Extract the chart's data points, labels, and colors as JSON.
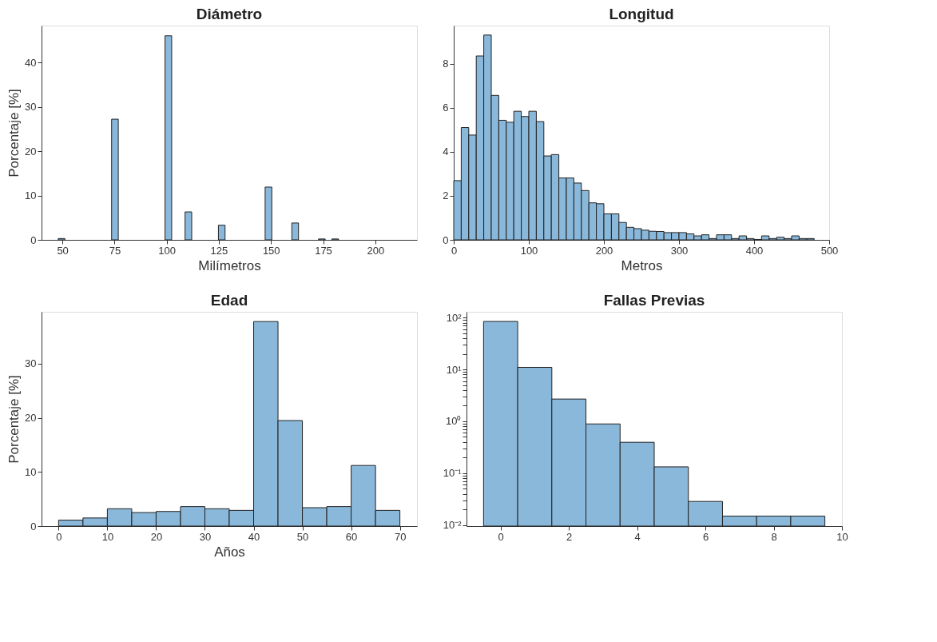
{
  "chart_data": [
    {
      "type": "histogram",
      "title": "Diámetro",
      "xlabel": "Milímetros",
      "ylabel": "Porcentaje [%]",
      "color": "#8ab8da",
      "bins": [
        48,
        51.2,
        54.4,
        57.6,
        60.8,
        64,
        67.2,
        70.4,
        73.6,
        76.8,
        80,
        83.2,
        86.4,
        89.6,
        92.8,
        96,
        99.2,
        102.4,
        105.6,
        108.8,
        112,
        115.2,
        118.4,
        121.6,
        124.8,
        128,
        131.2,
        134.4,
        137.6,
        140.8,
        144,
        147.2,
        150.4,
        153.6,
        156.8,
        160,
        163.2,
        166.4,
        169.6,
        172.8,
        176,
        179.2,
        182.4,
        185.6,
        188.8,
        192,
        195.2,
        198.4,
        201.6,
        204.8,
        208,
        211.2
      ],
      "values": [
        0.3,
        0,
        0,
        0,
        0,
        0,
        0,
        0,
        27.2,
        0,
        0,
        0,
        0,
        0,
        0,
        0,
        46.0,
        0,
        0,
        6.3,
        0,
        0,
        0,
        0,
        3.3,
        0,
        0,
        0,
        0,
        0,
        0,
        11.9,
        0,
        0,
        0,
        3.8,
        0,
        0,
        0,
        0.2,
        0,
        0.2,
        0,
        0,
        0,
        0,
        0,
        0,
        0,
        0,
        0
      ],
      "xlim": [
        40,
        220
      ],
      "xticks": [
        50,
        75,
        100,
        125,
        150,
        175,
        200
      ],
      "ylim": [
        0,
        48.3
      ],
      "yticks": [
        0,
        10,
        20,
        30,
        40
      ],
      "grid": false
    },
    {
      "type": "histogram",
      "title": "Longitud",
      "xlabel": "Metros",
      "color": "#8ab8da",
      "bins": [
        0,
        10,
        20,
        30,
        40,
        50,
        60,
        70,
        80,
        90,
        100,
        110,
        120,
        130,
        140,
        150,
        160,
        170,
        180,
        190,
        200,
        210,
        220,
        230,
        240,
        250,
        260,
        270,
        280,
        290,
        300,
        310,
        320,
        330,
        340,
        350,
        360,
        370,
        380,
        390,
        400,
        410,
        420,
        430,
        440,
        450,
        460,
        470,
        480
      ],
      "values": [
        2.69,
        5.1,
        4.76,
        8.35,
        9.3,
        6.56,
        5.43,
        5.34,
        5.84,
        5.6,
        5.84,
        5.37,
        3.81,
        3.87,
        2.81,
        2.81,
        2.58,
        2.24,
        1.68,
        1.64,
        1.18,
        1.18,
        0.79,
        0.57,
        0.51,
        0.44,
        0.39,
        0.38,
        0.33,
        0.33,
        0.33,
        0.27,
        0.18,
        0.23,
        0.06,
        0.23,
        0.23,
        0.06,
        0.18,
        0.06,
        0.02,
        0.18,
        0.06,
        0.12,
        0.06,
        0.18,
        0.06,
        0.06
      ],
      "xlim": [
        0,
        500
      ],
      "xticks": [
        0,
        100,
        200,
        300,
        400,
        500
      ],
      "ylim": [
        0,
        9.73
      ],
      "yticks": [
        0,
        2,
        4,
        6,
        8
      ],
      "grid": false
    },
    {
      "type": "histogram",
      "title": "Edad",
      "xlabel": "Años",
      "ylabel": "Porcentaje [%]",
      "color": "#8ab8da",
      "bins": [
        0,
        5,
        10,
        15,
        20,
        25,
        30,
        35,
        40,
        45,
        50,
        55,
        60,
        65,
        70
      ],
      "values": [
        1.1,
        1.5,
        3.2,
        2.5,
        2.7,
        3.6,
        3.2,
        2.9,
        37.8,
        19.5,
        3.4,
        3.6,
        11.2,
        2.9
      ],
      "xlim": [
        -3.5,
        73.5
      ],
      "xticks": [
        0,
        10,
        20,
        30,
        40,
        50,
        60,
        70
      ],
      "ylim": [
        0,
        39.6
      ],
      "yticks": [
        0,
        10,
        20,
        30
      ],
      "grid": false
    },
    {
      "type": "histogram",
      "title": "Fallas Previas",
      "color": "#8ab8da",
      "log": true,
      "bins": [
        -0.5,
        0.5,
        1.5,
        2.5,
        3.5,
        4.5,
        5.5,
        6.5,
        7.5,
        8.5,
        9.5
      ],
      "values": [
        84.7,
        11.0,
        2.69,
        0.89,
        0.394,
        0.132,
        0.0284,
        0.0148,
        0.0148,
        0.0148
      ],
      "xlim": [
        -1,
        10
      ],
      "xticks": [
        0,
        2,
        4,
        6,
        8,
        10
      ],
      "ylim": [
        0.0095,
        130
      ],
      "yticks": [
        {
          "value": 0.01,
          "label": "10⁻²"
        },
        {
          "value": 0.02,
          "label": null
        },
        {
          "value": 0.03,
          "label": null
        },
        {
          "value": 0.04,
          "label": null
        },
        {
          "value": 0.05,
          "label": null
        },
        {
          "value": 0.06,
          "label": null
        },
        {
          "value": 0.07,
          "label": null
        },
        {
          "value": 0.08,
          "label": null
        },
        {
          "value": 0.09,
          "label": null
        },
        {
          "value": 0.1,
          "label": "10⁻¹"
        },
        {
          "value": 0.2,
          "label": null
        },
        {
          "value": 0.3,
          "label": null
        },
        {
          "value": 0.4,
          "label": null
        },
        {
          "value": 0.5,
          "label": null
        },
        {
          "value": 0.6,
          "label": null
        },
        {
          "value": 0.7,
          "label": null
        },
        {
          "value": 0.8,
          "label": null
        },
        {
          "value": 0.9,
          "label": null
        },
        {
          "value": 1,
          "label": "10⁰"
        },
        {
          "value": 2,
          "label": null
        },
        {
          "value": 3,
          "label": null
        },
        {
          "value": 4,
          "label": null
        },
        {
          "value": 5,
          "label": null
        },
        {
          "value": 6,
          "label": null
        },
        {
          "value": 7,
          "label": null
        },
        {
          "value": 8,
          "label": null
        },
        {
          "value": 9,
          "label": null
        },
        {
          "value": 10,
          "label": "10¹"
        },
        {
          "value": 20,
          "label": null
        },
        {
          "value": 30,
          "label": null
        },
        {
          "value": 40,
          "label": null
        },
        {
          "value": 50,
          "label": null
        },
        {
          "value": 60,
          "label": null
        },
        {
          "value": 70,
          "label": null
        },
        {
          "value": 80,
          "label": null
        },
        {
          "value": 90,
          "label": null
        },
        {
          "value": 100,
          "label": "10²"
        }
      ],
      "grid": false
    }
  ]
}
